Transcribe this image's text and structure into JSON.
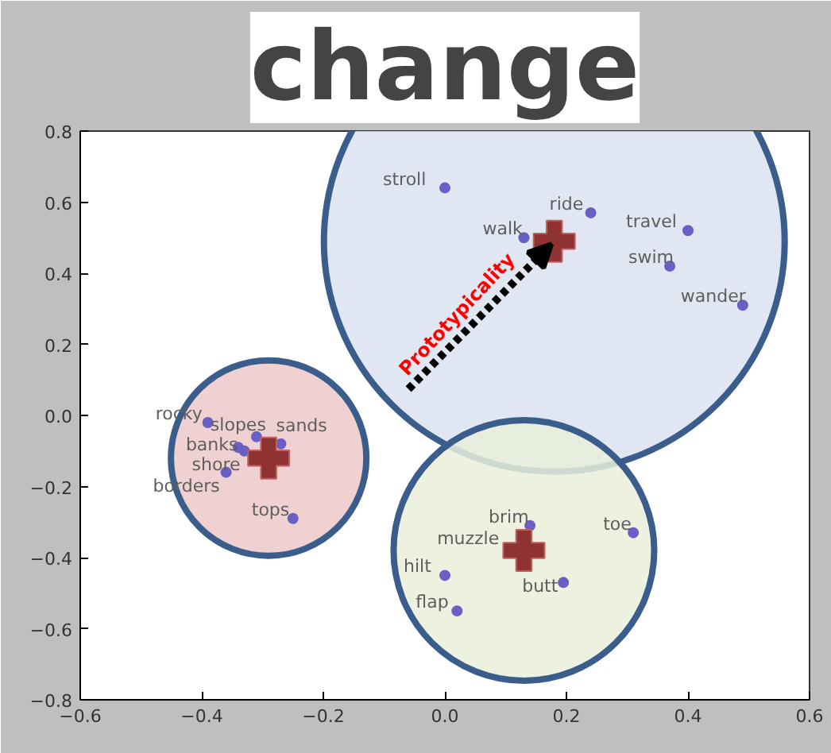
{
  "chart_data": {
    "type": "scatter",
    "title": "change",
    "xlim": [
      -0.6,
      0.6
    ],
    "ylim": [
      -0.8,
      0.8
    ],
    "xticks": [
      {
        "value": -0.6,
        "label": "−0.6"
      },
      {
        "value": -0.4,
        "label": "−0.4"
      },
      {
        "value": -0.2,
        "label": "−0.2"
      },
      {
        "value": 0.0,
        "label": "0.0"
      },
      0.2,
      0.4,
      {
        "value": 0.6,
        "label": "0.6"
      }
    ],
    "yticks": [
      {
        "value": -0.8,
        "label": "−0.8"
      },
      {
        "value": -0.6,
        "label": "−0.6"
      },
      {
        "value": -0.4,
        "label": "−0.4"
      },
      {
        "value": -0.2,
        "label": "−0.2"
      },
      {
        "value": 0.0,
        "label": "0.0"
      },
      0.2,
      0.4,
      0.6,
      0.8
    ],
    "grid": false,
    "series": [
      {
        "type": "bubble",
        "colors": [
          "#dae3f0",
          "#ecc9c9",
          "#e9eedb"
        ],
        "x": [
          0.18,
          -0.29,
          0.13
        ],
        "values": [
          0.49,
          -0.12,
          -0.38
        ],
        "sizes": [
          1,
          0.18,
          0.32
        ]
      },
      {
        "marker": "circle",
        "color": "#6a5fc4",
        "x": [
          0.0,
          0.13,
          0.24,
          0.4,
          0.37,
          0.49,
          -0.39,
          -0.31,
          -0.27,
          -0.34,
          -0.33,
          -0.36,
          -0.25,
          0.14,
          0.31,
          0.195,
          0.0,
          0.02
        ],
        "values": [
          0.64,
          0.5,
          0.57,
          0.52,
          0.42,
          0.31,
          -0.02,
          -0.06,
          -0.08,
          -0.09,
          -0.1,
          -0.16,
          -0.29,
          -0.31,
          -0.33,
          -0.47,
          -0.45,
          -0.55
        ]
      },
      {
        "type": "scatter",
        "marker": "cross",
        "color": "#8e3232",
        "x": [
          0.18,
          -0.29,
          0.13
        ],
        "values": [
          0.49,
          -0.12,
          -0.38
        ]
      }
    ],
    "annotations": [
      {
        "text": "stroll",
        "x": 0.0,
        "y": 0.64
      },
      {
        "text": "walk",
        "x": 0.13,
        "y": 0.5
      },
      {
        "text": "ride",
        "x": 0.24,
        "y": 0.57
      },
      {
        "text": "travel",
        "x": 0.4,
        "y": 0.52
      },
      {
        "text": "swim",
        "x": 0.37,
        "y": 0.42
      },
      {
        "text": "wander",
        "x": 0.49,
        "y": 0.31
      },
      {
        "text": "rocky",
        "x": -0.39,
        "y": -0.02
      },
      {
        "text": "slopes",
        "x": -0.31,
        "y": -0.06
      },
      {
        "text": "sands",
        "x": -0.27,
        "y": -0.08
      },
      {
        "text": "banks",
        "x": -0.34,
        "y": -0.09
      },
      {
        "text": "shore",
        "x": -0.33,
        "y": -0.1
      },
      {
        "text": "borders",
        "x": -0.36,
        "y": -0.16
      },
      {
        "text": "tops",
        "x": -0.25,
        "y": -0.29
      },
      {
        "text": "brim",
        "x": 0.14,
        "y": -0.31
      },
      {
        "text": "toe",
        "x": 0.31,
        "y": -0.33
      },
      {
        "text": "muzzle",
        "x": 0.11,
        "y": -0.37
      },
      {
        "text": "butt",
        "x": 0.195,
        "y": -0.47
      },
      {
        "text": "hilt",
        "x": 0.0,
        "y": -0.45
      },
      {
        "text": "flap",
        "x": 0.02,
        "y": -0.55
      },
      {
        "text": "Prototypicality",
        "x": 0.18,
        "y": 0.49
      }
    ]
  }
}
